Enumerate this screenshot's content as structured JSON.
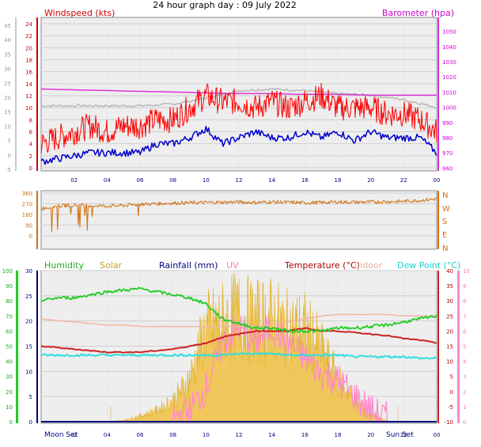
{
  "header": {
    "title": "24 hour graph day : 09 July 2022"
  },
  "colors": {
    "wind_gust": "#ff0000",
    "wind_avg": "#0000cc",
    "barometer": "#dd33dd",
    "baro_gray": "#b8b8b8",
    "direction": "#d07010",
    "humidity": "#22cc22",
    "solar": "#f0c040",
    "rainfall": "#000080",
    "uv": "#ff88cc",
    "temperature": "#cc2222",
    "indoor": "#f0b8a0",
    "dew_point": "#33dddd",
    "plot_bg": "#eeeeee"
  },
  "chart_data": [
    {
      "type": "line",
      "title": "24 hour graph day : 09 July 2022",
      "left_axis_title": "Windspeed (kts)",
      "right_axis_title": "Barometer (hpa)",
      "x_ticks": [
        "02",
        "04",
        "06",
        "08",
        "10",
        "12",
        "14",
        "16",
        "18",
        "20",
        "22",
        "00"
      ],
      "x_range_hours": [
        0,
        24
      ],
      "y_left_outer_ticks": [
        "-5",
        "0",
        "5",
        "10",
        "15",
        "20",
        "25",
        "30",
        "35",
        "40",
        "45"
      ],
      "y_left_inner_ticks": [
        "0",
        "2",
        "4",
        "6",
        "8",
        "10",
        "12",
        "14",
        "16",
        "18",
        "20",
        "22",
        "24"
      ],
      "y_left_range": [
        0,
        24
      ],
      "y_right_ticks": [
        "960",
        "970",
        "980",
        "990",
        "1000",
        "1010",
        "1020",
        "1030",
        "1040",
        "1050"
      ],
      "y_right_range": [
        955,
        1055
      ],
      "series": [
        {
          "name": "Gust",
          "x": [
            0,
            1,
            2,
            3,
            4,
            5,
            6,
            7,
            8,
            9,
            10,
            11,
            12,
            13,
            14,
            15,
            16,
            17,
            18,
            19,
            20,
            21,
            22,
            23,
            24
          ],
          "y": [
            4,
            5,
            6,
            7,
            6,
            7,
            7,
            8,
            8,
            10,
            12,
            11,
            11,
            10,
            11,
            10,
            11,
            12,
            10,
            10,
            10,
            9,
            9,
            8,
            6
          ]
        },
        {
          "name": "Average",
          "x": [
            0,
            1,
            2,
            3,
            4,
            5,
            6,
            7,
            8,
            9,
            10,
            11,
            12,
            13,
            14,
            15,
            16,
            17,
            18,
            19,
            20,
            21,
            22,
            23,
            24
          ],
          "y": [
            1,
            1.5,
            2,
            2.5,
            2.5,
            2.5,
            2.5,
            4,
            4,
            5,
            6.5,
            4,
            5,
            6,
            5,
            5,
            6,
            5,
            6,
            4.5,
            6,
            5,
            5,
            5,
            2.5
          ]
        },
        {
          "name": "Barometer",
          "x": [
            0,
            2,
            4,
            6,
            8,
            10,
            12,
            14,
            16,
            18,
            20,
            22,
            24
          ],
          "y": [
            1012,
            1011.5,
            1011,
            1010.5,
            1010,
            1009.5,
            1009,
            1009,
            1008.5,
            1008.5,
            1008,
            1008,
            1008
          ]
        },
        {
          "name": "Barometer trend",
          "x": [
            0,
            2,
            4,
            6,
            8,
            10,
            12,
            14,
            16,
            18,
            20,
            22,
            24
          ],
          "y": [
            1001,
            1001,
            1001,
            1001,
            1002,
            1006,
            1011,
            1012,
            1011,
            1009,
            1008,
            1005,
            1000
          ]
        }
      ]
    },
    {
      "type": "line",
      "title": "",
      "y_left_ticks": [
        "0",
        "90",
        "180",
        "270",
        "360"
      ],
      "y_left_range": [
        0,
        360
      ],
      "y_right_labels": [
        "N",
        "E",
        "S",
        "W",
        "N"
      ],
      "x_range_hours": [
        0,
        24
      ],
      "series": [
        {
          "name": "Wind direction",
          "x": [
            0,
            1,
            2,
            3,
            4,
            5,
            6,
            7,
            8,
            9,
            10,
            11,
            12,
            13,
            14,
            15,
            16,
            17,
            18,
            19,
            20,
            21,
            22,
            23,
            24
          ],
          "y": [
            230,
            250,
            260,
            255,
            250,
            255,
            265,
            270,
            275,
            278,
            280,
            282,
            285,
            280,
            285,
            282,
            278,
            280,
            285,
            283,
            285,
            288,
            290,
            298,
            310
          ]
        }
      ]
    },
    {
      "type": "line",
      "title": "",
      "legend": [
        "Humidity",
        "Solar",
        "Rainfall (mm)",
        "UV",
        "Temperature (°C)",
        "Indoor",
        "Dew Point (°C)"
      ],
      "x_ticks": [
        "02",
        "04",
        "06",
        "08",
        "10",
        "12",
        "14",
        "16",
        "18",
        "20",
        "22",
        "00"
      ],
      "x_extra_labels": [
        "Moon Set",
        "Sun Set"
      ],
      "x_range_hours": [
        0,
        24
      ],
      "y_humidity_ticks": [
        "0",
        "10",
        "20",
        "30",
        "40",
        "50",
        "60",
        "70",
        "80",
        "90",
        "100"
      ],
      "y_humidity_range": [
        0,
        100
      ],
      "y_rain_ticks": [
        "0",
        "5",
        "10",
        "15",
        "20",
        "25",
        "30"
      ],
      "y_rain_range": [
        0,
        30
      ],
      "y_temp_ticks": [
        "-10",
        "-5",
        "0",
        "5",
        "10",
        "15",
        "20",
        "25",
        "30",
        "35",
        "40"
      ],
      "y_temp_range": [
        -10,
        40
      ],
      "y_uv_ticks": [
        "0",
        "1",
        "2",
        "3",
        "4",
        "5",
        "6",
        "7",
        "8",
        "9",
        "10"
      ],
      "y_uv_range": [
        0,
        10
      ],
      "series": [
        {
          "name": "Humidity",
          "x": [
            0,
            1,
            2,
            3,
            4,
            5,
            6,
            7,
            8,
            9,
            10,
            11,
            12,
            13,
            14,
            15,
            16,
            17,
            18,
            19,
            20,
            21,
            22,
            23,
            24
          ],
          "y": [
            80,
            82,
            82,
            84,
            86,
            87,
            88,
            86,
            84,
            82,
            78,
            68,
            65,
            62,
            62,
            60,
            60,
            60,
            62,
            62,
            63,
            64,
            66,
            68,
            70
          ]
        },
        {
          "name": "Temperature",
          "x": [
            0,
            1,
            2,
            3,
            4,
            5,
            6,
            7,
            8,
            9,
            10,
            11,
            12,
            13,
            14,
            15,
            16,
            17,
            18,
            19,
            20,
            21,
            22,
            23,
            24
          ],
          "y": [
            15,
            14.5,
            14,
            13.5,
            13,
            13,
            13,
            13.5,
            14,
            15,
            16,
            18,
            19,
            20,
            20,
            20,
            21,
            20,
            20,
            19.5,
            19,
            18.5,
            17.5,
            17,
            16
          ]
        },
        {
          "name": "Indoor",
          "x": [
            0,
            1,
            2,
            3,
            4,
            5,
            6,
            7,
            8,
            9,
            10,
            11,
            12,
            13,
            14,
            15,
            16,
            17,
            18,
            19,
            20,
            21,
            22,
            23,
            24
          ],
          "y": [
            24,
            23.5,
            23,
            22.5,
            22,
            22,
            21.5,
            21.5,
            21.5,
            21.5,
            21.5,
            21.5,
            21.5,
            21.5,
            22,
            23,
            24,
            25,
            25.5,
            25.5,
            25.5,
            25.5,
            25,
            25,
            25
          ]
        },
        {
          "name": "Dew Point",
          "x": [
            0,
            1,
            2,
            3,
            4,
            5,
            6,
            7,
            8,
            9,
            10,
            11,
            12,
            13,
            14,
            15,
            16,
            17,
            18,
            19,
            20,
            21,
            22,
            23,
            24
          ],
          "y": [
            12,
            12,
            12,
            12,
            12,
            12,
            12,
            12,
            12,
            12,
            12,
            12,
            12.5,
            12.5,
            12.5,
            12,
            12,
            12,
            12,
            11.5,
            11.5,
            11.5,
            11.5,
            11,
            11
          ]
        },
        {
          "name": "Solar",
          "x": [
            0,
            4,
            5,
            6,
            7,
            8,
            9,
            10,
            11,
            12,
            13,
            14,
            15,
            16,
            17,
            18,
            19,
            20,
            21,
            24
          ],
          "y": [
            0,
            0,
            10,
            40,
            80,
            150,
            300,
            650,
            700,
            750,
            700,
            720,
            650,
            650,
            500,
            300,
            150,
            60,
            0,
            0
          ]
        },
        {
          "name": "UV",
          "x": [
            0,
            8,
            9,
            10,
            11,
            12,
            13,
            14,
            15,
            16,
            17,
            18,
            19,
            20,
            21,
            24
          ],
          "y": [
            0,
            0,
            0.5,
            2,
            5,
            6,
            5,
            6,
            5,
            4,
            3,
            2.5,
            1.5,
            0.5,
            0,
            0
          ]
        },
        {
          "name": "Rainfall",
          "x": [
            0,
            24
          ],
          "y": [
            0,
            0
          ]
        }
      ]
    }
  ]
}
